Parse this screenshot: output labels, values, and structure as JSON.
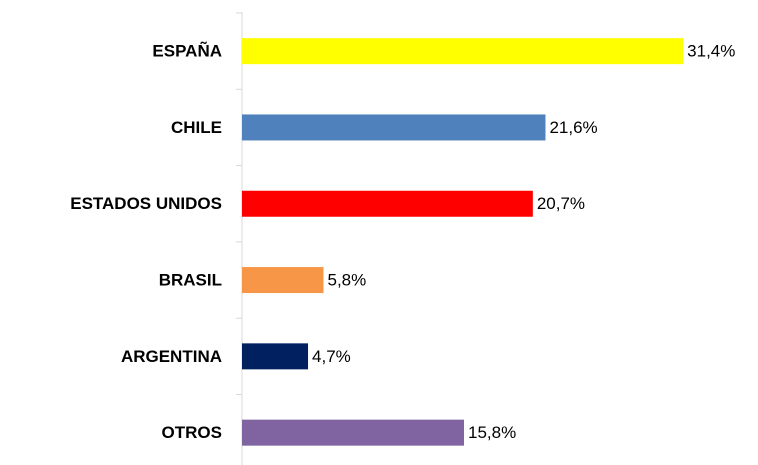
{
  "chart_data": {
    "type": "bar",
    "orientation": "horizontal",
    "categories": [
      "ESPAÑA",
      "CHILE",
      "ESTADOS UNIDOS",
      "BRASIL",
      "ARGENTINA",
      "OTROS"
    ],
    "values": [
      31.4,
      21.6,
      20.7,
      5.8,
      4.7,
      15.8
    ],
    "value_labels": [
      "31,4%",
      "21,6%",
      "20,7%",
      "5,8%",
      "4,7%",
      "15,8%"
    ],
    "colors": [
      "#ffff00",
      "#4f81bd",
      "#ff0000",
      "#f79646",
      "#002060",
      "#8064a2"
    ]
  }
}
